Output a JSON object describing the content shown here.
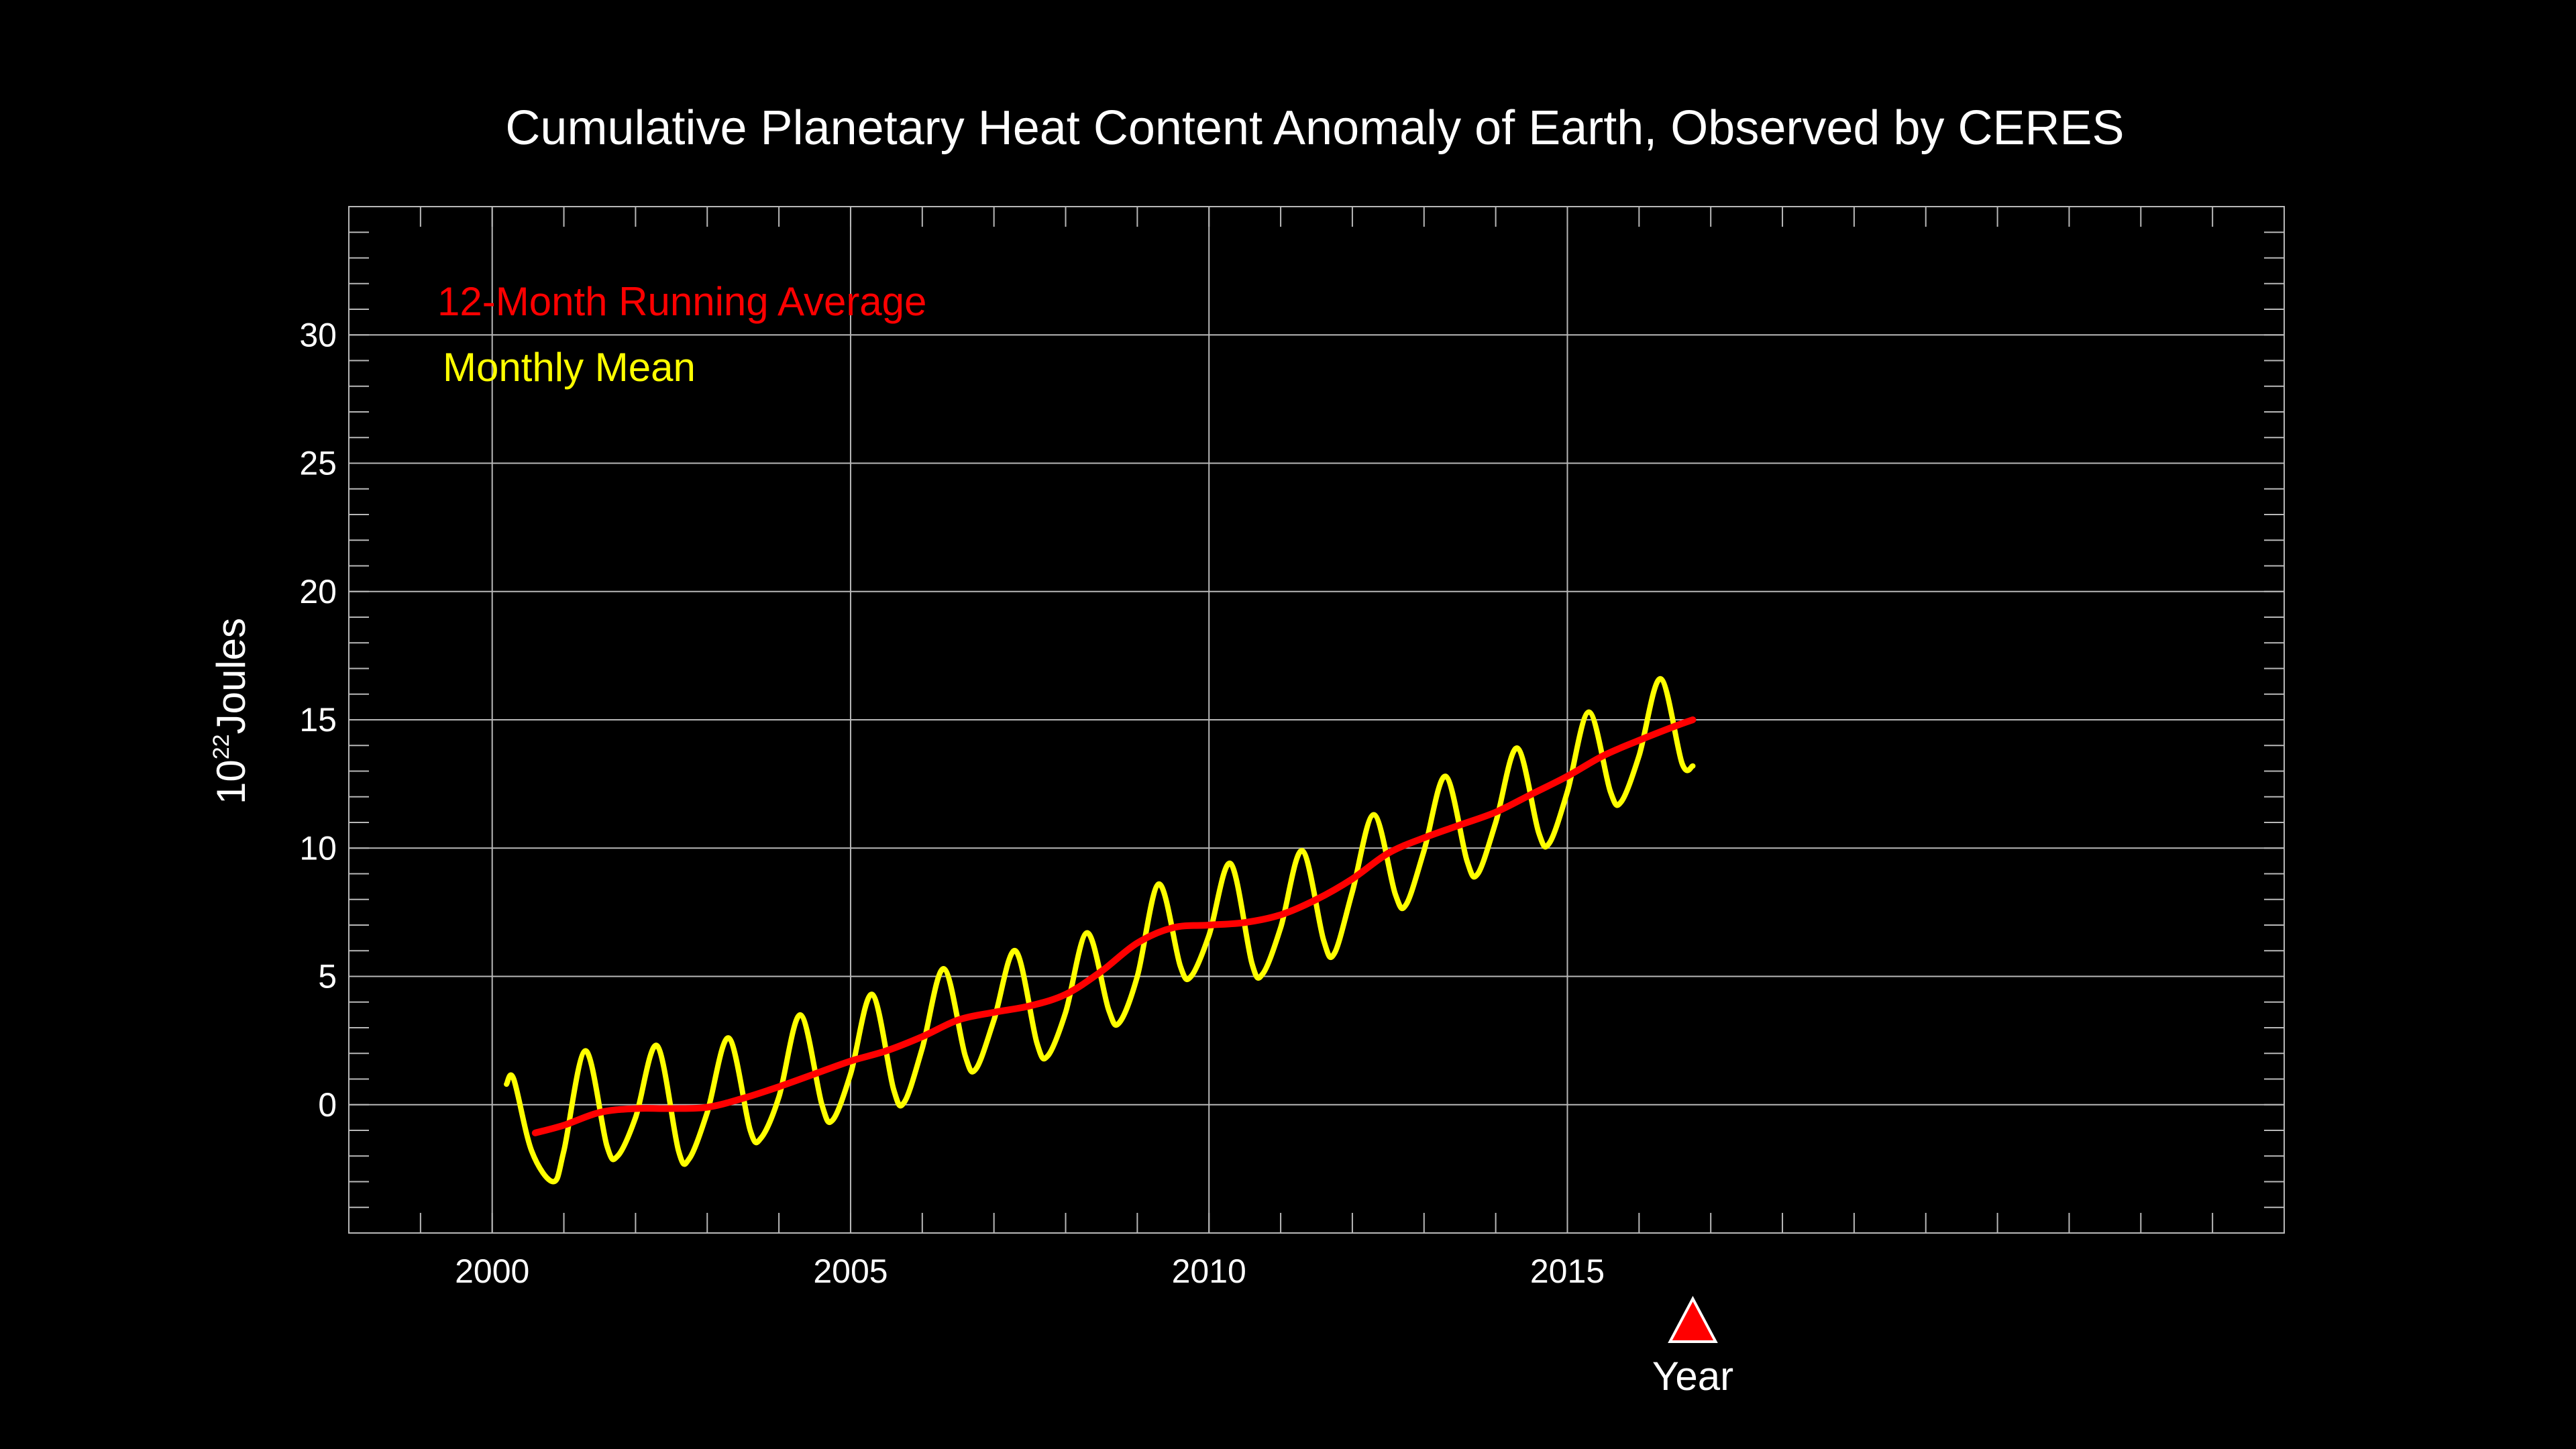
{
  "colors": {
    "background": "#000000",
    "text": "#ffffff",
    "grid": "#b8b8b8",
    "running_average": "#ff0000",
    "monthly_mean": "#ffff00",
    "marker_fill": "#ff0000",
    "marker_stroke": "#ffffff"
  },
  "chart_data": {
    "type": "line",
    "title": "Cumulative Planetary Heat Content Anomaly of Earth, Observed by CERES",
    "xlabel": "Year",
    "ylabel": {
      "base": "10",
      "exponent": "22",
      "unit": "Joules"
    },
    "xlim": [
      1998,
      2025
    ],
    "ylim": [
      -5,
      35
    ],
    "xticks": [
      2000,
      2005,
      2010,
      2015
    ],
    "yticks": [
      0,
      5,
      10,
      15,
      20,
      25,
      30
    ],
    "grid": true,
    "legend_position": "top-left",
    "current_year_marker": 2016.75,
    "series": [
      {
        "name": "12-Month Running Average",
        "color": "#ff0000",
        "x": [
          2000.6,
          2001.0,
          2001.5,
          2002.0,
          2002.5,
          2003.0,
          2003.5,
          2004.0,
          2004.5,
          2005.0,
          2005.5,
          2006.0,
          2006.5,
          2007.0,
          2007.5,
          2008.0,
          2008.5,
          2009.0,
          2009.5,
          2010.0,
          2010.5,
          2011.0,
          2011.5,
          2012.0,
          2012.5,
          2013.0,
          2013.5,
          2014.0,
          2014.5,
          2015.0,
          2015.5,
          2016.0,
          2016.5,
          2016.75
        ],
        "y": [
          -1.1,
          -0.8,
          -0.3,
          -0.15,
          -0.15,
          -0.1,
          0.25,
          0.7,
          1.2,
          1.7,
          2.1,
          2.65,
          3.3,
          3.6,
          3.85,
          4.3,
          5.2,
          6.3,
          6.9,
          7.0,
          7.1,
          7.4,
          8.0,
          8.8,
          9.8,
          10.4,
          10.9,
          11.4,
          12.1,
          12.8,
          13.6,
          14.2,
          14.75,
          15.0
        ]
      },
      {
        "name": "Monthly Mean",
        "color": "#ffff00",
        "x": [
          2000.2,
          2000.3,
          2000.55,
          2000.85,
          2001.0,
          2001.3,
          2001.6,
          2001.75,
          2002.0,
          2002.3,
          2002.6,
          2002.75,
          2003.0,
          2003.3,
          2003.6,
          2003.75,
          2004.0,
          2004.3,
          2004.6,
          2004.75,
          2005.0,
          2005.3,
          2005.6,
          2005.75,
          2006.0,
          2006.3,
          2006.6,
          2006.75,
          2007.0,
          2007.3,
          2007.6,
          2007.75,
          2008.0,
          2008.3,
          2008.6,
          2008.75,
          2009.0,
          2009.3,
          2009.6,
          2009.75,
          2010.0,
          2010.3,
          2010.6,
          2010.75,
          2011.0,
          2011.3,
          2011.6,
          2011.75,
          2012.0,
          2012.3,
          2012.6,
          2012.75,
          2013.0,
          2013.3,
          2013.6,
          2013.75,
          2014.0,
          2014.3,
          2014.6,
          2014.75,
          2015.0,
          2015.3,
          2015.6,
          2015.75,
          2016.0,
          2016.3,
          2016.6,
          2016.75
        ],
        "y": [
          0.8,
          1.0,
          -1.8,
          -3.0,
          -1.8,
          2.1,
          -1.6,
          -2.0,
          -0.5,
          2.3,
          -1.8,
          -2.1,
          -0.3,
          2.6,
          -1.0,
          -1.3,
          0.3,
          3.5,
          0.0,
          -0.6,
          1.2,
          4.3,
          0.6,
          0.1,
          2.2,
          5.3,
          1.9,
          1.4,
          3.3,
          6.0,
          2.4,
          1.9,
          3.6,
          6.7,
          3.7,
          3.2,
          5.0,
          8.6,
          5.4,
          5.0,
          6.6,
          9.4,
          5.5,
          5.1,
          6.9,
          9.9,
          6.4,
          5.9,
          8.3,
          11.3,
          8.2,
          7.8,
          9.9,
          12.8,
          9.5,
          9.0,
          11.0,
          13.9,
          10.6,
          10.2,
          12.2,
          15.3,
          12.2,
          11.8,
          13.6,
          16.6,
          13.3,
          13.2
        ]
      }
    ]
  }
}
